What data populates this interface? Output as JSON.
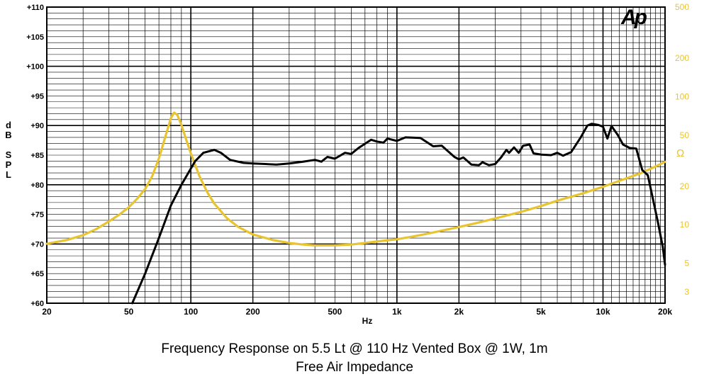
{
  "chart_data": {
    "type": "line",
    "title": "Frequency Response on 5.5 Lt @ 110 Hz Vented Box @ 1W, 1m",
    "subtitle": "Free Air Impedance",
    "xlabel": "Hz",
    "ylabel_left": "dB SPL",
    "ylabel_right": "Ω",
    "x_scale": "log",
    "xlim": [
      20,
      20000
    ],
    "ylim_left": [
      60,
      110
    ],
    "ylim_right": [
      2.44,
      500
    ],
    "y_right_scale": "log",
    "grid": true,
    "x_ticks": [
      {
        "value": 20,
        "label": "20"
      },
      {
        "value": 50,
        "label": "50"
      },
      {
        "value": 100,
        "label": "100"
      },
      {
        "value": 200,
        "label": "200"
      },
      {
        "value": 500,
        "label": "500"
      },
      {
        "value": 1000,
        "label": "1k"
      },
      {
        "value": 2000,
        "label": "2k"
      },
      {
        "value": 5000,
        "label": "5k"
      },
      {
        "value": 10000,
        "label": "10k"
      },
      {
        "value": 20000,
        "label": "20k"
      }
    ],
    "y_left_ticks": [
      {
        "value": 60,
        "label": "+60"
      },
      {
        "value": 65,
        "label": "+65"
      },
      {
        "value": 70,
        "label": "+70"
      },
      {
        "value": 75,
        "label": "+75"
      },
      {
        "value": 80,
        "label": "+80"
      },
      {
        "value": 85,
        "label": "+85"
      },
      {
        "value": 90,
        "label": "+90"
      },
      {
        "value": 95,
        "label": "+95"
      },
      {
        "value": 100,
        "label": "+100"
      },
      {
        "value": 105,
        "label": "+105"
      },
      {
        "value": 110,
        "label": "+110"
      }
    ],
    "y_right_ticks": [
      {
        "value": 3,
        "label": "3"
      },
      {
        "value": 5,
        "label": "5"
      },
      {
        "value": 10,
        "label": "10"
      },
      {
        "value": 20,
        "label": "20"
      },
      {
        "value": 50,
        "label": "50"
      },
      {
        "value": 100,
        "label": "100"
      },
      {
        "value": 200,
        "label": "200"
      },
      {
        "value": 500,
        "label": "500"
      }
    ],
    "series": [
      {
        "axis": "left",
        "color": "#000000",
        "points": [
          [
            52,
            60
          ],
          [
            60,
            65
          ],
          [
            70,
            71
          ],
          [
            80,
            76.5
          ],
          [
            90,
            80
          ],
          [
            105,
            84
          ],
          [
            115,
            85.4
          ],
          [
            130,
            85.9
          ],
          [
            140,
            85.4
          ],
          [
            155,
            84.2
          ],
          [
            180,
            83.7
          ],
          [
            200,
            83.6
          ],
          [
            230,
            83.5
          ],
          [
            260,
            83.4
          ],
          [
            300,
            83.6
          ],
          [
            350,
            83.9
          ],
          [
            400,
            84.2
          ],
          [
            430,
            83.9
          ],
          [
            460,
            84.7
          ],
          [
            500,
            84.4
          ],
          [
            560,
            85.4
          ],
          [
            600,
            85.2
          ],
          [
            650,
            86.2
          ],
          [
            750,
            87.6
          ],
          [
            800,
            87.3
          ],
          [
            860,
            87.1
          ],
          [
            900,
            87.8
          ],
          [
            1000,
            87.4
          ],
          [
            1100,
            88
          ],
          [
            1300,
            87.9
          ],
          [
            1500,
            86.5
          ],
          [
            1650,
            86.6
          ],
          [
            1900,
            84.7
          ],
          [
            2000,
            84.3
          ],
          [
            2100,
            84.6
          ],
          [
            2300,
            83.4
          ],
          [
            2500,
            83.3
          ],
          [
            2600,
            83.8
          ],
          [
            2800,
            83.3
          ],
          [
            3000,
            83.5
          ],
          [
            3200,
            84.6
          ],
          [
            3400,
            85.9
          ],
          [
            3500,
            85.4
          ],
          [
            3700,
            86.3
          ],
          [
            3900,
            85.4
          ],
          [
            4100,
            86.6
          ],
          [
            4400,
            86.8
          ],
          [
            4600,
            85.3
          ],
          [
            5000,
            85.1
          ],
          [
            5600,
            85
          ],
          [
            6000,
            85.4
          ],
          [
            6400,
            84.9
          ],
          [
            7000,
            85.5
          ],
          [
            7800,
            88
          ],
          [
            8400,
            90
          ],
          [
            8800,
            90.3
          ],
          [
            9500,
            90.1
          ],
          [
            10000,
            89.8
          ],
          [
            10500,
            87.8
          ],
          [
            11000,
            89.9
          ],
          [
            11800,
            88.4
          ],
          [
            12500,
            86.8
          ],
          [
            13500,
            86.2
          ],
          [
            14500,
            86.1
          ],
          [
            15500,
            82.5
          ],
          [
            16500,
            81.6
          ],
          [
            17500,
            77.5
          ],
          [
            18500,
            73.5
          ],
          [
            19500,
            69.5
          ],
          [
            20000,
            66.5
          ]
        ]
      },
      {
        "axis": "right",
        "color": "#e8c430",
        "points": [
          [
            20,
            7.1
          ],
          [
            25,
            7.6
          ],
          [
            30,
            8.3
          ],
          [
            35,
            9.3
          ],
          [
            40,
            10.6
          ],
          [
            45,
            12
          ],
          [
            50,
            13.7
          ],
          [
            55,
            16
          ],
          [
            60,
            19
          ],
          [
            65,
            24
          ],
          [
            70,
            33
          ],
          [
            75,
            48
          ],
          [
            80,
            68
          ],
          [
            83,
            75
          ],
          [
            86,
            72
          ],
          [
            90,
            60
          ],
          [
            95,
            46
          ],
          [
            100,
            36
          ],
          [
            110,
            24
          ],
          [
            120,
            18
          ],
          [
            130,
            14.6
          ],
          [
            150,
            11.2
          ],
          [
            170,
            9.6
          ],
          [
            200,
            8.4
          ],
          [
            250,
            7.6
          ],
          [
            300,
            7.2
          ],
          [
            350,
            7
          ],
          [
            400,
            6.9
          ],
          [
            500,
            6.9
          ],
          [
            600,
            7
          ],
          [
            700,
            7.2
          ],
          [
            800,
            7.4
          ],
          [
            1000,
            7.7
          ],
          [
            1200,
            8.1
          ],
          [
            1500,
            8.7
          ],
          [
            2000,
            9.6
          ],
          [
            2500,
            10.4
          ],
          [
            3000,
            11.2
          ],
          [
            4000,
            12.6
          ],
          [
            5000,
            14
          ],
          [
            6000,
            15.4
          ],
          [
            8000,
            17.6
          ],
          [
            10000,
            19.8
          ],
          [
            12000,
            22
          ],
          [
            15000,
            25
          ],
          [
            18000,
            28.5
          ],
          [
            20000,
            31
          ]
        ]
      }
    ]
  },
  "logo_text": "Ap"
}
